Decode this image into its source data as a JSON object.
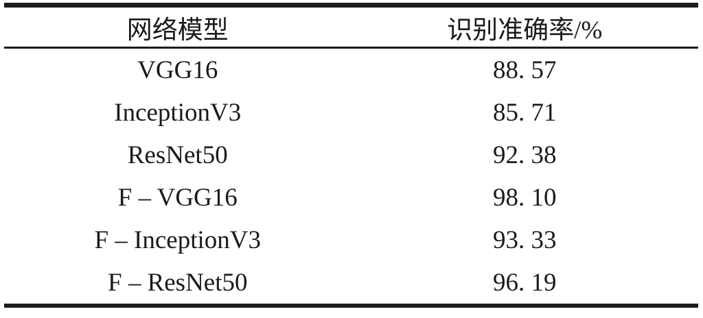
{
  "table": {
    "columns": [
      {
        "label": "网络模型"
      },
      {
        "label": "识别准确率/%"
      }
    ],
    "rows": [
      {
        "model": "VGG16",
        "accuracy": "88. 57"
      },
      {
        "model": "InceptionV3",
        "accuracy": "85. 71"
      },
      {
        "model": "ResNet50",
        "accuracy": "92. 38"
      },
      {
        "model": "F – VGG16",
        "accuracy": "98. 10"
      },
      {
        "model": "F – InceptionV3",
        "accuracy": "93. 33"
      },
      {
        "model": "F – ResNet50",
        "accuracy": "96. 19"
      }
    ]
  },
  "chart_data": {
    "type": "table",
    "columns": [
      "网络模型",
      "识别准确率/%"
    ],
    "rows": [
      [
        "VGG16",
        88.57
      ],
      [
        "InceptionV3",
        85.71
      ],
      [
        "ResNet50",
        92.38
      ],
      [
        "F – VGG16",
        98.1
      ],
      [
        "F – InceptionV3",
        93.33
      ],
      [
        "F – ResNet50",
        96.19
      ]
    ]
  },
  "colors": {
    "text": "#1a1a1a",
    "rule": "#1c1c1c",
    "background": "#ffffff"
  }
}
